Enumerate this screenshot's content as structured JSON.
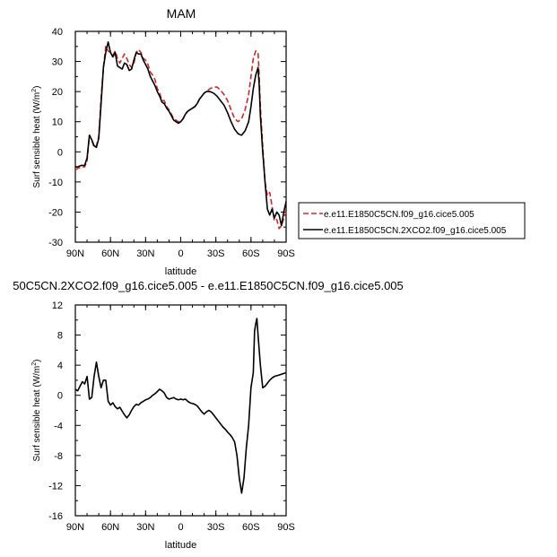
{
  "chart_data": [
    {
      "type": "line",
      "title": "MAM",
      "xlabel": "latitude",
      "ylabel_main": "Surf sensible heat (W/m",
      "ylabel_sup": "2",
      "ylabel_close": ")",
      "xlim": [
        90,
        -90
      ],
      "ylim": [
        -30,
        40
      ],
      "x_ticks": [
        90,
        60,
        30,
        0,
        -30,
        -60,
        -90
      ],
      "x_tick_labels": [
        "90N",
        "60N",
        "30N",
        "0",
        "30S",
        "60S",
        "90S"
      ],
      "y_ticks": [
        -30,
        -20,
        -10,
        0,
        10,
        20,
        30,
        40
      ],
      "y_tick_labels": [
        "-30",
        "-20",
        "-10",
        "0",
        "10",
        "20",
        "30",
        "40"
      ],
      "legend_position": "right",
      "series": [
        {
          "name": "e.e11.E1850C5CN.f09_g16.cice5.005",
          "color": "#d62728",
          "dash": "dashed",
          "x": [
            90,
            88,
            85,
            82,
            80,
            78,
            76,
            74,
            72,
            70,
            68,
            66,
            64,
            62,
            60,
            58,
            56,
            54,
            52,
            50,
            48,
            46,
            44,
            42,
            40,
            38,
            36,
            34,
            32,
            30,
            28,
            26,
            24,
            22,
            20,
            18,
            16,
            14,
            12,
            10,
            8,
            6,
            4,
            2,
            0,
            -2,
            -4,
            -6,
            -8,
            -10,
            -12,
            -14,
            -16,
            -18,
            -20,
            -22,
            -25,
            -28,
            -31,
            -34,
            -37,
            -40,
            -43,
            -46,
            -49,
            -52,
            -55,
            -58,
            -60,
            -62,
            -64,
            -66,
            -67,
            -68,
            -70,
            -72,
            -74,
            -76,
            -78,
            -80,
            -82,
            -84,
            -86,
            -88,
            -90
          ],
          "values": [
            -6,
            -5.5,
            -5,
            -5,
            -3,
            5.5,
            4,
            1.5,
            2,
            5,
            18,
            28,
            35,
            33.5,
            33,
            32,
            33.5,
            31,
            29.5,
            31,
            32.5,
            31,
            29,
            28,
            29.5,
            33,
            34,
            33,
            31,
            30.5,
            29,
            26.5,
            25.5,
            24,
            21,
            19.5,
            17,
            17,
            15,
            14,
            12.5,
            11,
            10.5,
            10,
            10,
            11,
            12.5,
            13.5,
            14,
            14.5,
            15,
            16,
            17.5,
            18.5,
            19.5,
            20,
            21,
            21.5,
            21.5,
            20.5,
            19,
            17,
            14,
            11,
            10,
            11,
            14,
            19,
            25,
            31,
            33.5,
            33,
            25,
            15,
            2,
            -10,
            -14.5,
            -13.5,
            -18,
            -23,
            -22.5,
            -25.5,
            -24.5,
            -22,
            -20
          ]
        },
        {
          "name": "e.e11.E1850C5CN.2XCO2.f09_g16.cice5.005",
          "color": "#000000",
          "dash": "solid",
          "x": [
            90,
            88,
            85,
            82,
            80,
            78,
            76,
            74,
            72,
            70,
            68,
            66,
            64,
            62,
            60,
            58,
            56,
            54,
            52,
            50,
            48,
            46,
            44,
            42,
            40,
            38,
            36,
            34,
            32,
            30,
            28,
            26,
            24,
            22,
            20,
            18,
            16,
            14,
            12,
            10,
            8,
            6,
            4,
            2,
            0,
            -2,
            -4,
            -6,
            -8,
            -10,
            -12,
            -14,
            -16,
            -18,
            -20,
            -22,
            -25,
            -28,
            -31,
            -34,
            -37,
            -40,
            -43,
            -46,
            -49,
            -52,
            -55,
            -58,
            -60,
            -62,
            -64,
            -66,
            -67,
            -68,
            -70,
            -72,
            -74,
            -76,
            -78,
            -80,
            -82,
            -84,
            -86,
            -88,
            -90
          ],
          "values": [
            -5,
            -5,
            -4.5,
            -4.5,
            -2,
            5.5,
            4,
            2,
            1.5,
            4.5,
            16,
            28,
            33,
            36.5,
            33,
            31.5,
            33,
            28.5,
            28,
            27.5,
            29.5,
            29,
            27,
            27.5,
            30.5,
            33,
            32.5,
            32.5,
            30.5,
            29,
            27.5,
            25,
            23.5,
            22,
            20,
            18.5,
            16.5,
            16,
            14.5,
            13.5,
            12,
            10.5,
            10,
            9.5,
            10,
            11,
            12.5,
            13.5,
            14,
            14.5,
            15,
            16,
            17.5,
            18.5,
            19.5,
            20,
            20,
            19.5,
            18.5,
            17,
            15.5,
            13,
            10,
            7.5,
            6,
            5.5,
            7,
            10,
            15,
            21,
            25.5,
            28,
            22,
            12,
            0,
            -10,
            -19,
            -21,
            -19,
            -22,
            -20,
            -21,
            -24.5,
            -20,
            -16.5
          ]
        }
      ]
    },
    {
      "type": "line",
      "title": "50C5CN.2XCO2.f09_g16.cice5.005 - e.e11.E1850C5CN.f09_g16.cice5.005",
      "xlabel": "latitude",
      "ylabel_main": "Surf sensible heat (W/m",
      "ylabel_sup": "2",
      "ylabel_close": ")",
      "xlim": [
        90,
        -90
      ],
      "ylim": [
        -16,
        12
      ],
      "x_ticks": [
        90,
        60,
        30,
        0,
        -30,
        -60,
        -90
      ],
      "x_tick_labels": [
        "90N",
        "60N",
        "30N",
        "0",
        "30S",
        "60S",
        "90S"
      ],
      "y_ticks": [
        -16,
        -12,
        -8,
        -4,
        0,
        4,
        8,
        12
      ],
      "y_tick_labels": [
        "-16",
        "-12",
        "-8",
        "-4",
        "0",
        "4",
        "8",
        "12"
      ],
      "series": [
        {
          "color": "#000000",
          "dash": "solid",
          "x": [
            90,
            88,
            86,
            84,
            82,
            80,
            78,
            76,
            74,
            72,
            70,
            68,
            66,
            64,
            62,
            60,
            58,
            56,
            54,
            52,
            50,
            48,
            46,
            44,
            42,
            40,
            38,
            36,
            34,
            32,
            30,
            28,
            26,
            24,
            22,
            20,
            18,
            16,
            14,
            12,
            10,
            8,
            6,
            4,
            2,
            0,
            -2,
            -4,
            -6,
            -8,
            -10,
            -12,
            -14,
            -16,
            -18,
            -20,
            -22,
            -24,
            -26,
            -28,
            -30,
            -32,
            -34,
            -36,
            -38,
            -40,
            -42,
            -44,
            -46,
            -48,
            -50,
            -52,
            -54,
            -56,
            -58,
            -60,
            -62,
            -63,
            -64,
            -65,
            -66,
            -68,
            -70,
            -72,
            -74,
            -76,
            -78,
            -80,
            -82,
            -84,
            -86,
            -88,
            -90
          ],
          "values": [
            0.8,
            0.6,
            1.2,
            1.8,
            1.5,
            2.5,
            -0.5,
            -0.3,
            2.5,
            4.4,
            2.5,
            1,
            2,
            2,
            -0.8,
            -1.3,
            -1.0,
            -1.5,
            -1.8,
            -1.6,
            -2.1,
            -2.6,
            -3.0,
            -2.6,
            -2.0,
            -1.5,
            -1.2,
            -1.3,
            -1.0,
            -0.8,
            -0.6,
            -0.5,
            -0.3,
            0.0,
            0.2,
            0.5,
            0.8,
            0.6,
            0.3,
            -0.3,
            -0.5,
            -0.4,
            -0.3,
            -0.5,
            -0.6,
            -0.5,
            -0.6,
            -0.5,
            -0.8,
            -1.0,
            -1.1,
            -1.2,
            -1.4,
            -1.8,
            -2.2,
            -2.5,
            -2.2,
            -2.0,
            -2.2,
            -2.6,
            -3.0,
            -3.4,
            -3.8,
            -4.2,
            -4.5,
            -4.9,
            -5.2,
            -5.6,
            -6.2,
            -8.0,
            -11.0,
            -13.0,
            -11.0,
            -7.0,
            -4.0,
            1.0,
            3.0,
            8.5,
            9.5,
            10.2,
            8.0,
            4.0,
            1.0,
            1.2,
            1.6,
            2.0,
            2.3,
            2.5,
            2.6,
            2.7,
            2.8,
            2.9,
            3.0
          ]
        }
      ]
    }
  ]
}
